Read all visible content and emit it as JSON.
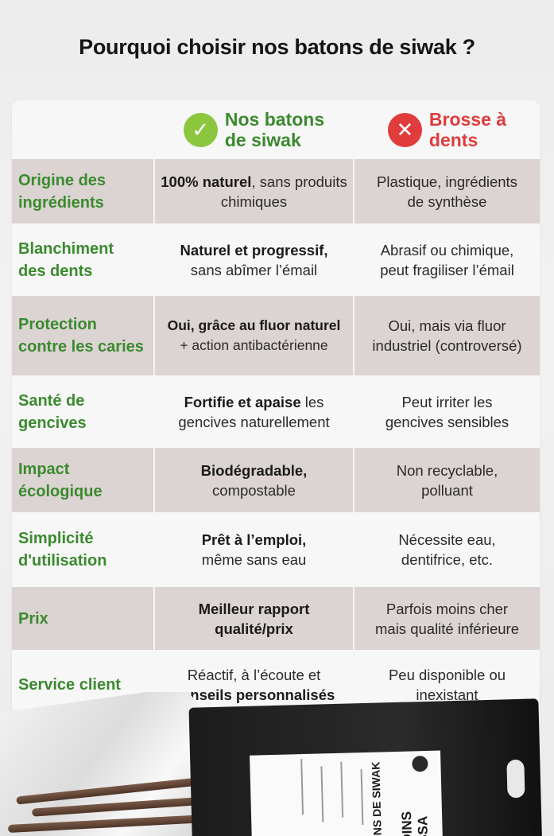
{
  "title": "Pourquoi choisir nos batons de siwak ?",
  "header": {
    "ours": {
      "label_line1": "Nos batons",
      "label_line2": "de siwak",
      "icon": "check-icon",
      "color": "#3a8a2e"
    },
    "theirs": {
      "label_line1": "Brosse à",
      "label_line2": "dents",
      "icon": "cross-icon",
      "color": "#e03c3c"
    }
  },
  "rows": [
    {
      "criterion": [
        "Origine des",
        "ingrédients"
      ],
      "ours_bold": "100% naturel",
      "ours_rest": ", sans produits chimiques",
      "theirs": [
        "Plastique, ingrédients",
        "de synthèse"
      ]
    },
    {
      "criterion": [
        "Blanchiment",
        "des dents"
      ],
      "ours_bold": "Naturel et progressif,",
      "ours_rest": " sans abîmer l’émail",
      "theirs": [
        "Abrasif ou chimique,",
        "peut fragiliser l’émail"
      ]
    },
    {
      "criterion": [
        "Protection",
        "contre les caries"
      ],
      "ours_bold": "Oui, grâce au fluor naturel",
      "ours_rest": " + action antibactérienne",
      "theirs": [
        "Oui, mais via fluor",
        "industriel (controversé)"
      ]
    },
    {
      "criterion": [
        "Santé de",
        "gencives"
      ],
      "ours_bold": "Fortifie et apaise",
      "ours_rest": " les gencives naturellement",
      "theirs": [
        "Peut irriter les",
        "gencives sensibles"
      ]
    },
    {
      "criterion": [
        "Impact",
        "écologique"
      ],
      "ours_bold": "Biodégradable,",
      "ours_rest": " compostable",
      "theirs": [
        "Non recyclable,",
        "polluant"
      ]
    },
    {
      "criterion": [
        "Simplicité",
        "d'utilisation"
      ],
      "ours_bold": "Prêt à l’emploi,",
      "ours_rest": " même sans eau",
      "theirs": [
        "Nécessite eau,",
        "dentifrice, etc."
      ]
    },
    {
      "criterion": [
        "Prix",
        ""
      ],
      "ours_bold": "Meilleur rapport qualité/prix",
      "ours_rest": "",
      "theirs": [
        "Parfois moins cher",
        "mais qualité inférieure"
      ]
    },
    {
      "criterion": [
        "Service client",
        ""
      ],
      "ours_bold_first": false,
      "ours_rest_before": "Réactif, à l’écoute et ",
      "ours_bold": "conseils personnalisés",
      "ours_rest": "",
      "theirs": [
        "Peu disponible ou",
        "inexistant"
      ]
    }
  ],
  "product": {
    "brand": "JARDINS D'AISSA",
    "name": "BÂTONS DE SIWAK"
  }
}
